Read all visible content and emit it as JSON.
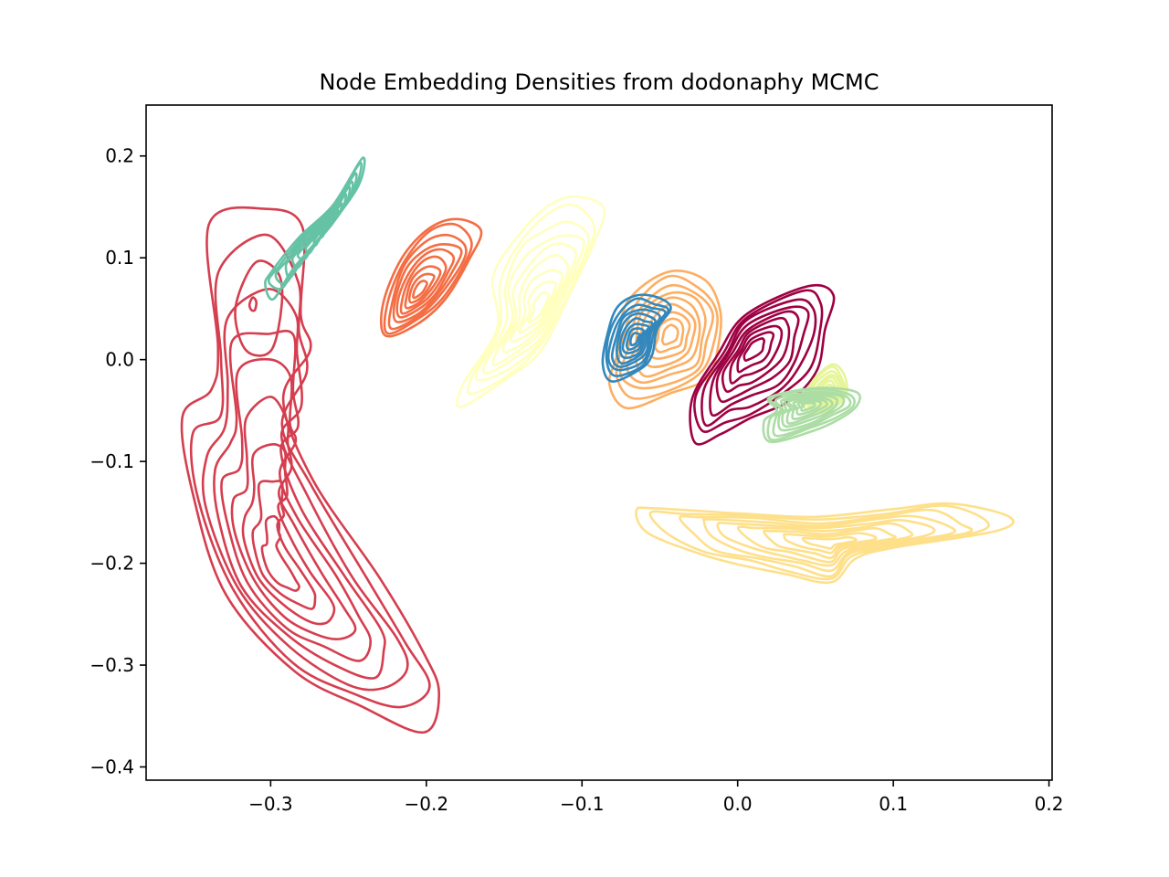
{
  "chart_data": {
    "type": "contour",
    "title": "Node Embedding Densities from dodonaphy MCMC",
    "xlabel": "",
    "ylabel": "",
    "xlim": [
      -0.38,
      0.202
    ],
    "ylim": [
      -0.413,
      0.25
    ],
    "xticks": [
      -0.3,
      -0.2,
      -0.1,
      0.0,
      0.1,
      0.2
    ],
    "xtick_labels": [
      "−0.3",
      "−0.2",
      "−0.1",
      "0.0",
      "0.1",
      "0.2"
    ],
    "yticks": [
      0.2,
      0.1,
      0.0,
      -0.1,
      -0.2,
      -0.3,
      -0.4
    ],
    "ytick_labels": [
      "0.2",
      "0.1",
      "0.0",
      "−0.1",
      "−0.2",
      "−0.3",
      "−0.4"
    ],
    "grid": false,
    "legend": "none",
    "series": [
      {
        "color": "#d53e4f",
        "peak": [
          -0.297,
          -0.205
        ],
        "outer": [
          [
            -0.303,
            0.148
          ],
          [
            -0.28,
            0.12
          ],
          [
            -0.28,
            0.055
          ],
          [
            -0.275,
            0.005
          ],
          [
            -0.292,
            -0.04
          ],
          [
            -0.272,
            -0.115
          ],
          [
            -0.232,
            -0.215
          ],
          [
            -0.2,
            -0.29
          ],
          [
            -0.19,
            -0.33
          ],
          [
            -0.205,
            -0.36
          ],
          [
            -0.24,
            -0.345
          ],
          [
            -0.285,
            -0.305
          ],
          [
            -0.328,
            -0.23
          ],
          [
            -0.352,
            -0.13
          ],
          [
            -0.355,
            -0.06
          ],
          [
            -0.338,
            -0.03
          ],
          [
            -0.335,
            0.02
          ],
          [
            -0.338,
            0.12
          ]
        ],
        "secondary": {
          "peak": [
            -0.312,
            0.055
          ],
          "outer": [
            [
              -0.31,
              0.095
            ],
            [
              -0.296,
              0.085
            ],
            [
              -0.292,
              0.055
            ],
            [
              -0.3,
              0.01
            ],
            [
              -0.316,
              0.01
            ],
            [
              -0.323,
              0.05
            ]
          ],
          "levels": 2
        }
      },
      {
        "color": "#66c2a5",
        "peak": [
          -0.262,
          0.13
        ],
        "outer": [
          [
            -0.241,
            0.198
          ],
          [
            -0.244,
            0.17
          ],
          [
            -0.262,
            0.132
          ],
          [
            -0.285,
            0.09
          ],
          [
            -0.298,
            0.06
          ],
          [
            -0.305,
            0.072
          ],
          [
            -0.298,
            0.088
          ],
          [
            -0.282,
            0.12
          ],
          [
            -0.26,
            0.152
          ]
        ]
      },
      {
        "color": "#f46d43",
        "peak": [
          -0.205,
          0.067
        ],
        "outer": [
          [
            -0.18,
            0.138
          ],
          [
            -0.166,
            0.125
          ],
          [
            -0.171,
            0.1
          ],
          [
            -0.188,
            0.06
          ],
          [
            -0.206,
            0.035
          ],
          [
            -0.227,
            0.022
          ],
          [
            -0.227,
            0.055
          ],
          [
            -0.216,
            0.1
          ],
          [
            -0.198,
            0.13
          ]
        ]
      },
      {
        "color": "#ffffbf",
        "peak": [
          -0.127,
          0.05
        ],
        "outer": [
          [
            -0.104,
            0.16
          ],
          [
            -0.087,
            0.145
          ],
          [
            -0.093,
            0.11
          ],
          [
            -0.108,
            0.065
          ],
          [
            -0.126,
            0.01
          ],
          [
            -0.148,
            -0.02
          ],
          [
            -0.176,
            -0.043
          ],
          [
            -0.177,
            -0.025
          ],
          [
            -0.155,
            0.03
          ],
          [
            -0.156,
            0.08
          ],
          [
            -0.142,
            0.123
          ],
          [
            -0.122,
            0.15
          ]
        ]
      },
      {
        "color": "#fdae61",
        "peak": [
          -0.043,
          0.025
        ],
        "outer": [
          [
            -0.045,
            0.086
          ],
          [
            -0.022,
            0.077
          ],
          [
            -0.01,
            0.05
          ],
          [
            -0.013,
            0.015
          ],
          [
            -0.02,
            -0.018
          ],
          [
            -0.043,
            -0.035
          ],
          [
            -0.07,
            -0.045
          ],
          [
            -0.083,
            -0.025
          ],
          [
            -0.078,
            0.005
          ],
          [
            -0.07,
            0.055
          ]
        ]
      },
      {
        "color": "#3288bd",
        "peak": [
          -0.066,
          0.02
        ],
        "outer": [
          [
            -0.065,
            0.063
          ],
          [
            -0.052,
            0.06
          ],
          [
            -0.042,
            0.052
          ],
          [
            -0.052,
            0.03
          ],
          [
            -0.055,
            0.005
          ],
          [
            -0.062,
            -0.01
          ],
          [
            -0.08,
            -0.02
          ],
          [
            -0.087,
            -0.005
          ],
          [
            -0.084,
            0.025
          ],
          [
            -0.077,
            0.05
          ]
        ]
      },
      {
        "color": "#9e0142",
        "peak": [
          0.01,
          0.012
        ],
        "outer": [
          [
            0.045,
            0.072
          ],
          [
            0.06,
            0.062
          ],
          [
            0.058,
            0.03
          ],
          [
            0.05,
            -0.01
          ],
          [
            0.033,
            -0.04
          ],
          [
            0.008,
            -0.06
          ],
          [
            -0.01,
            -0.07
          ],
          [
            -0.028,
            -0.083
          ],
          [
            -0.03,
            -0.04
          ],
          [
            -0.012,
            0.005
          ],
          [
            0.005,
            0.045
          ]
        ]
      },
      {
        "color": "#e6f598",
        "peak": [
          0.058,
          -0.035
        ],
        "outer": [
          [
            0.06,
            -0.005
          ],
          [
            0.068,
            -0.015
          ],
          [
            0.07,
            -0.035
          ],
          [
            0.058,
            -0.05
          ],
          [
            0.044,
            -0.05
          ],
          [
            0.046,
            -0.025
          ]
        ]
      },
      {
        "color": "#abdda4",
        "peak": [
          0.045,
          -0.045
        ],
        "outer": [
          [
            0.05,
            -0.028
          ],
          [
            0.075,
            -0.032
          ],
          [
            0.078,
            -0.045
          ],
          [
            0.065,
            -0.058
          ],
          [
            0.048,
            -0.07
          ],
          [
            0.02,
            -0.082
          ],
          [
            0.018,
            -0.06
          ],
          [
            0.025,
            -0.05
          ],
          [
            0.02,
            -0.037
          ]
        ]
      },
      {
        "color": "#fee08b",
        "peak": [
          0.06,
          -0.18
        ],
        "outer": [
          [
            -0.065,
            -0.148
          ],
          [
            -0.05,
            -0.147
          ],
          [
            0.0,
            -0.15
          ],
          [
            0.05,
            -0.155
          ],
          [
            0.1,
            -0.147
          ],
          [
            0.14,
            -0.14
          ],
          [
            0.17,
            -0.155
          ],
          [
            0.168,
            -0.168
          ],
          [
            0.1,
            -0.185
          ],
          [
            0.075,
            -0.195
          ],
          [
            0.06,
            -0.22
          ],
          [
            0.03,
            -0.21
          ],
          [
            0.0,
            -0.2
          ],
          [
            -0.03,
            -0.19
          ],
          [
            -0.055,
            -0.17
          ]
        ]
      }
    ]
  }
}
